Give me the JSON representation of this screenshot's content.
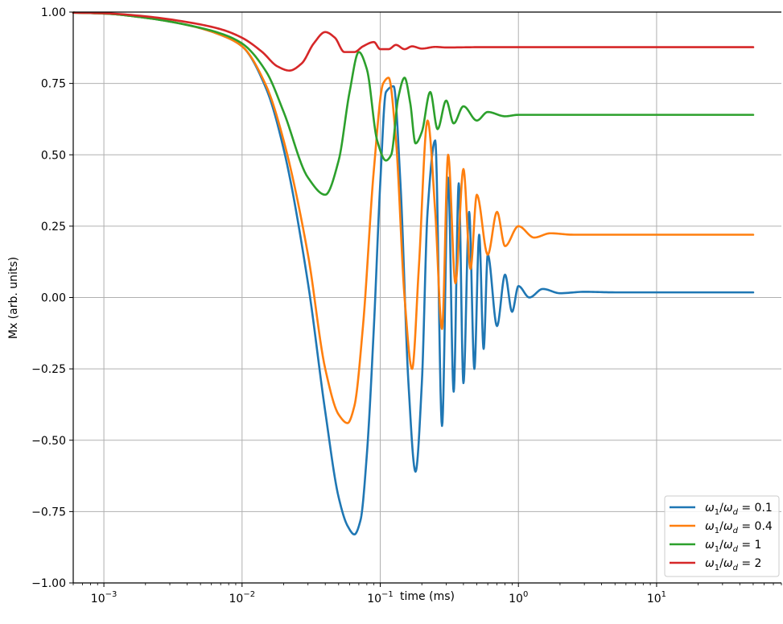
{
  "chart_data": {
    "type": "line",
    "xlabel": "time (ms)",
    "ylabel": "Mx (arb. units)",
    "xscale": "log",
    "xlim": [
      0.0006,
      80
    ],
    "ylim": [
      -1.0,
      1.0
    ],
    "x_ticks": [
      {
        "value": 0.001,
        "base": "10",
        "exp": "−3"
      },
      {
        "value": 0.01,
        "base": "10",
        "exp": "−2"
      },
      {
        "value": 0.1,
        "base": "10",
        "exp": "−1"
      },
      {
        "value": 1,
        "base": "10",
        "exp": "0"
      },
      {
        "value": 10,
        "base": "10",
        "exp": "1"
      }
    ],
    "y_ticks": [
      {
        "value": 1.0,
        "label": "1.00"
      },
      {
        "value": 0.75,
        "label": "0.75"
      },
      {
        "value": 0.5,
        "label": "0.50"
      },
      {
        "value": 0.25,
        "label": "0.25"
      },
      {
        "value": 0.0,
        "label": "0.00"
      },
      {
        "value": -0.25,
        "label": "−0.25"
      },
      {
        "value": -0.5,
        "label": "−0.50"
      },
      {
        "value": -0.75,
        "label": "−0.75"
      },
      {
        "value": -1.0,
        "label": "−1.00"
      }
    ],
    "grid": true,
    "legend_position": "lower-right",
    "series": [
      {
        "name": "ω1/ωd = 0.1",
        "legend": {
          "a": "ω",
          "a_sub": "1",
          "b": "ω",
          "b_sub": "d",
          "val": "0.1"
        },
        "color": "#1f77b4",
        "x": [
          0.0006,
          0.001,
          0.002,
          0.004,
          0.007,
          0.01,
          0.015,
          0.02,
          0.03,
          0.04,
          0.05,
          0.058,
          0.065,
          0.072,
          0.08,
          0.09,
          0.1,
          0.11,
          0.125,
          0.14,
          0.16,
          0.18,
          0.2,
          0.22,
          0.25,
          0.28,
          0.31,
          0.34,
          0.37,
          0.4,
          0.44,
          0.48,
          0.52,
          0.56,
          0.6,
          0.7,
          0.8,
          0.9,
          1.0,
          1.2,
          1.5,
          2.0,
          3.0,
          5.0,
          10,
          50
        ],
        "y": [
          0.998,
          0.995,
          0.98,
          0.955,
          0.92,
          0.88,
          0.73,
          0.52,
          0.05,
          -0.4,
          -0.7,
          -0.8,
          -0.83,
          -0.78,
          -0.55,
          -0.1,
          0.4,
          0.72,
          0.74,
          0.4,
          -0.3,
          -0.61,
          -0.3,
          0.3,
          0.55,
          -0.45,
          0.42,
          -0.33,
          0.4,
          -0.3,
          0.3,
          -0.25,
          0.22,
          -0.18,
          0.15,
          -0.1,
          0.08,
          -0.05,
          0.04,
          0.0,
          0.03,
          0.015,
          0.02,
          0.018,
          0.018,
          0.018
        ]
      },
      {
        "name": "ω1/ωd = 0.4",
        "legend": {
          "a": "ω",
          "a_sub": "1",
          "b": "ω",
          "b_sub": "d",
          "val": "0.4"
        },
        "color": "#ff7f0e",
        "x": [
          0.0006,
          0.001,
          0.002,
          0.004,
          0.007,
          0.01,
          0.015,
          0.02,
          0.03,
          0.04,
          0.05,
          0.058,
          0.065,
          0.075,
          0.09,
          0.105,
          0.115,
          0.13,
          0.15,
          0.17,
          0.19,
          0.22,
          0.25,
          0.28,
          0.31,
          0.35,
          0.4,
          0.45,
          0.5,
          0.6,
          0.7,
          0.8,
          1.0,
          1.3,
          1.7,
          2.5,
          5,
          50
        ],
        "y": [
          0.998,
          0.995,
          0.98,
          0.955,
          0.92,
          0.88,
          0.74,
          0.55,
          0.15,
          -0.25,
          -0.41,
          -0.44,
          -0.38,
          -0.1,
          0.45,
          0.75,
          0.77,
          0.55,
          0.0,
          -0.25,
          0.1,
          0.62,
          0.3,
          -0.11,
          0.5,
          0.05,
          0.45,
          0.1,
          0.36,
          0.15,
          0.3,
          0.18,
          0.25,
          0.21,
          0.225,
          0.22,
          0.22,
          0.22
        ]
      },
      {
        "name": "ω1/ωd = 1",
        "legend": {
          "a": "ω",
          "a_sub": "1",
          "b": "ω",
          "b_sub": "d",
          "val": "1"
        },
        "color": "#2ca02c",
        "x": [
          0.0006,
          0.001,
          0.002,
          0.004,
          0.007,
          0.01,
          0.015,
          0.02,
          0.03,
          0.04,
          0.05,
          0.06,
          0.07,
          0.08,
          0.095,
          0.11,
          0.12,
          0.135,
          0.15,
          0.165,
          0.18,
          0.2,
          0.23,
          0.26,
          0.3,
          0.34,
          0.4,
          0.5,
          0.6,
          0.8,
          1.0,
          2,
          5,
          50
        ],
        "y": [
          0.998,
          0.995,
          0.98,
          0.955,
          0.925,
          0.89,
          0.79,
          0.65,
          0.42,
          0.36,
          0.48,
          0.72,
          0.86,
          0.8,
          0.55,
          0.48,
          0.5,
          0.7,
          0.77,
          0.68,
          0.54,
          0.58,
          0.72,
          0.59,
          0.69,
          0.61,
          0.67,
          0.62,
          0.65,
          0.635,
          0.64,
          0.64,
          0.64,
          0.64
        ]
      },
      {
        "name": "ω1/ωd = 2",
        "legend": {
          "a": "ω",
          "a_sub": "1",
          "b": "ω",
          "b_sub": "d",
          "val": "2"
        },
        "color": "#d62728",
        "x": [
          0.0006,
          0.001,
          0.002,
          0.004,
          0.007,
          0.01,
          0.014,
          0.018,
          0.022,
          0.027,
          0.033,
          0.04,
          0.047,
          0.055,
          0.065,
          0.075,
          0.09,
          0.1,
          0.115,
          0.13,
          0.15,
          0.17,
          0.2,
          0.25,
          0.3,
          0.5,
          1,
          10,
          50
        ],
        "y": [
          0.998,
          0.996,
          0.985,
          0.965,
          0.94,
          0.91,
          0.86,
          0.81,
          0.795,
          0.82,
          0.89,
          0.93,
          0.91,
          0.86,
          0.86,
          0.88,
          0.895,
          0.87,
          0.87,
          0.885,
          0.87,
          0.88,
          0.872,
          0.878,
          0.876,
          0.877,
          0.877,
          0.877,
          0.877
        ]
      }
    ]
  }
}
